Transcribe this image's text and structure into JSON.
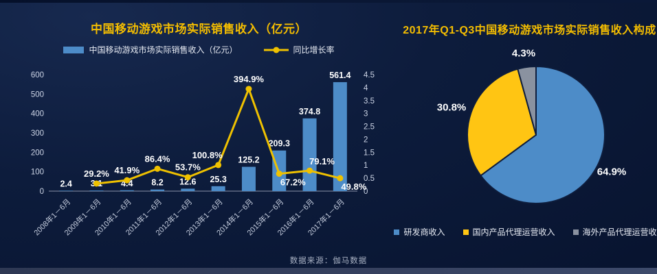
{
  "source_note": "数据来源：伽马数据",
  "colors": {
    "background": "#0C1A38",
    "title": "#F5BE00",
    "bar": "#4D8CC8",
    "line": "#EFC100",
    "pie_blue": "#4D8CC8",
    "pie_yellow": "#FFC513",
    "pie_gray": "#8A92A0",
    "axis_text": "#C9D2E3",
    "footer_bar": "#333E5D"
  },
  "chart_data": [
    {
      "type": "bar",
      "title": "中国移动游戏市场实际销售收入（亿元）",
      "legend_position": "top",
      "grid": false,
      "categories": [
        "2008年1－6月",
        "2009年1－6月",
        "2010年1－6月",
        "2011年1－6月",
        "2012年1－6月",
        "2013年1－6月",
        "2014年1－6月",
        "2015年1－6月",
        "2016年1－6月",
        "2017年1－6月"
      ],
      "series": [
        {
          "name": "中国移动游戏市场实际销售收入（亿元）",
          "type": "bar",
          "axis": "left",
          "color": "#4D8CC8",
          "values": [
            2.4,
            3.1,
            4.4,
            8.2,
            12.6,
            25.3,
            125.2,
            209.3,
            374.8,
            561.4
          ]
        },
        {
          "name": "同比增长率",
          "type": "line",
          "axis": "right",
          "unit": "%",
          "color": "#EFC100",
          "values": [
            null,
            29.2,
            41.9,
            86.4,
            53.7,
            100.8,
            394.9,
            67.2,
            79.1,
            49.8
          ],
          "label_sides": [
            null,
            "above",
            "above",
            "above",
            "above",
            "above-left",
            "above",
            "below-right",
            "above-right",
            "below-right"
          ]
        }
      ],
      "left_axis": {
        "min": 0,
        "max": 600,
        "step": 100
      },
      "right_axis": {
        "min": 0,
        "max": 4.5,
        "step": 0.5
      }
    },
    {
      "type": "pie",
      "title": "2017年Q1-Q3中国移动游戏市场实际销售收入构成",
      "start_angle_deg": 0,
      "direction": "clockwise",
      "legend_position": "bottom",
      "slices": [
        {
          "label": "研发商收入",
          "value": 64.9,
          "pct_label": "64.9%",
          "color": "#4D8CC8"
        },
        {
          "label": "国内产品代理运营收入",
          "value": 30.8,
          "pct_label": "30.8%",
          "color": "#FFC513"
        },
        {
          "label": "海外产品代理运营收入",
          "value": 4.3,
          "pct_label": "4.3%",
          "color": "#8A92A0"
        }
      ]
    }
  ]
}
